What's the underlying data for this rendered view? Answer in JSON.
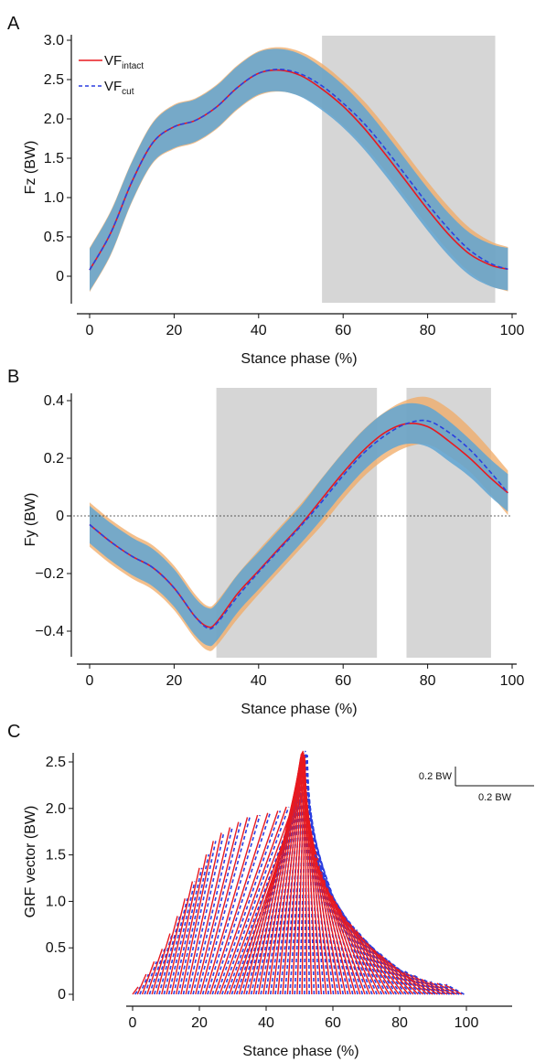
{
  "chart_data": [
    {
      "panel": "A",
      "type": "line",
      "xlabel": "Stance phase (%)",
      "ylabel": "Fz (BW)",
      "xlim": [
        0,
        100
      ],
      "ylim": [
        -0.1,
        3.0
      ],
      "xticks": [
        "0",
        "20",
        "40",
        "60",
        "80",
        "100"
      ],
      "yticks": [
        "0",
        "0.5",
        "1.0",
        "1.5",
        "2.0",
        "2.5",
        "3.0"
      ],
      "legend": {
        "placement": "top-left",
        "entries": [
          {
            "main": "VF",
            "sub": "intact",
            "color": "#e8191f",
            "dash": "solid"
          },
          {
            "main": "VF",
            "sub": "cut",
            "color": "#2b3fe0",
            "dash": "dashed"
          }
        ]
      },
      "shaded_regions": [
        [
          55,
          96
        ]
      ],
      "x": [
        0,
        5,
        10,
        15,
        20,
        25,
        30,
        35,
        40,
        45,
        50,
        55,
        60,
        65,
        70,
        75,
        80,
        85,
        90,
        95,
        99
      ],
      "series": [
        {
          "name": "VF intact",
          "values": [
            0.08,
            0.55,
            1.2,
            1.7,
            1.9,
            1.98,
            2.15,
            2.4,
            2.58,
            2.62,
            2.55,
            2.38,
            2.16,
            1.88,
            1.55,
            1.2,
            0.85,
            0.53,
            0.28,
            0.14,
            0.09
          ],
          "band": [
            0.27,
            0.27,
            0.25,
            0.25,
            0.27,
            0.27,
            0.27,
            0.27,
            0.27,
            0.27,
            0.27,
            0.27,
            0.27,
            0.27,
            0.27,
            0.27,
            0.27,
            0.27,
            0.27,
            0.27,
            0.27
          ]
        },
        {
          "name": "VF cut",
          "values": [
            0.08,
            0.55,
            1.2,
            1.7,
            1.9,
            1.98,
            2.15,
            2.4,
            2.58,
            2.63,
            2.57,
            2.42,
            2.2,
            1.94,
            1.62,
            1.27,
            0.92,
            0.6,
            0.33,
            0.16,
            0.09
          ]
        }
      ]
    },
    {
      "panel": "B",
      "type": "line",
      "xlabel": "Stance phase (%)",
      "ylabel": "Fy (BW)",
      "xlim": [
        0,
        100
      ],
      "ylim": [
        -0.48,
        0.42
      ],
      "xticks": [
        "0",
        "20",
        "40",
        "60",
        "80",
        "100"
      ],
      "yticks": [
        "−0.4",
        "−0.2",
        "0",
        "0.2",
        "0.4"
      ],
      "zero_line": true,
      "shaded_regions": [
        [
          30,
          68
        ],
        [
          75,
          95
        ]
      ],
      "x": [
        0,
        5,
        10,
        15,
        20,
        25,
        28,
        30,
        35,
        40,
        45,
        50,
        55,
        60,
        65,
        70,
        75,
        80,
        85,
        90,
        95,
        99
      ],
      "series": [
        {
          "name": "VF intact",
          "values": [
            -0.03,
            -0.09,
            -0.14,
            -0.18,
            -0.25,
            -0.35,
            -0.385,
            -0.37,
            -0.27,
            -0.19,
            -0.11,
            -0.03,
            0.06,
            0.15,
            0.23,
            0.29,
            0.32,
            0.31,
            0.26,
            0.2,
            0.13,
            0.08
          ],
          "band": [
            0.065,
            0.065,
            0.065,
            0.065,
            0.065,
            0.065,
            0.065,
            0.065,
            0.065,
            0.065,
            0.065,
            0.065,
            0.07,
            0.07,
            0.07,
            0.07,
            0.07,
            0.07,
            0.07,
            0.065,
            0.065,
            0.065
          ]
        },
        {
          "name": "VF cut",
          "values": [
            -0.03,
            -0.09,
            -0.14,
            -0.18,
            -0.25,
            -0.35,
            -0.39,
            -0.375,
            -0.28,
            -0.195,
            -0.115,
            -0.035,
            0.05,
            0.14,
            0.22,
            0.28,
            0.32,
            0.33,
            0.29,
            0.23,
            0.15,
            0.08
          ]
        }
      ]
    },
    {
      "panel": "C",
      "type": "scatter",
      "xlabel": "Stance phase (%)",
      "ylabel": "GRF vector (BW)",
      "xlim": [
        -5,
        110
      ],
      "ylim": [
        0,
        2.6
      ],
      "xticks": [
        "0",
        "20",
        "40",
        "60",
        "80",
        "100"
      ],
      "yticks": [
        "0",
        "0.5",
        "1.0",
        "1.5",
        "2.0",
        "2.5"
      ],
      "scale_bar": {
        "vertical_label": "0.2 BW",
        "horizontal_label": "0.2 BW"
      },
      "series": [
        {
          "name": "VF intact",
          "color": "#e8191f",
          "dash": "solid"
        },
        {
          "name": "VF cut",
          "color": "#2b3fe0",
          "dash": "dashed"
        }
      ]
    }
  ]
}
